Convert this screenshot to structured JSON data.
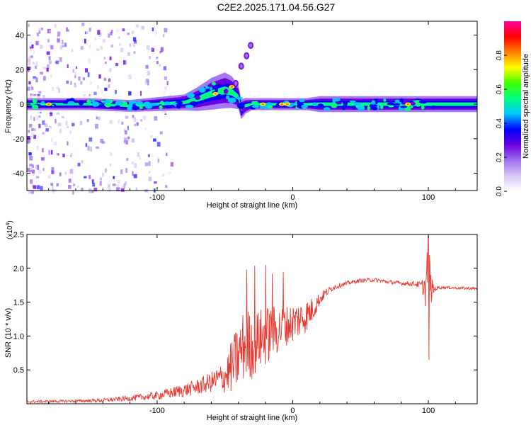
{
  "title": "C2E2.2025.171.04.56.G27",
  "colors": {
    "snr_line": "#e53a32",
    "axis": "#000000",
    "colormap": [
      "#ffffff",
      "#d9c8f6",
      "#a070f0",
      "#6a00e0",
      "#0000ff",
      "#00c8ff",
      "#00ff80",
      "#40ff00",
      "#ffff00",
      "#ff8000",
      "#ff0000",
      "#ff00a0"
    ]
  },
  "chart_data": [
    {
      "type": "heatmap",
      "panel": "spectrogram",
      "xlabel": "Height of straight line (km)",
      "ylabel": "Frequency (Hz)",
      "xlim": [
        -196,
        136
      ],
      "ylim": [
        -50,
        48
      ],
      "x_ticks": [
        -100,
        0,
        100
      ],
      "x_tick_labels": [
        "-100",
        "0",
        "100"
      ],
      "y_ticks": [
        40,
        20,
        0,
        -20,
        -40
      ],
      "y_tick_labels": [
        "40",
        "20",
        "0",
        "-20",
        "-40"
      ],
      "colorbar": {
        "label": "Normalized spectral amplitude",
        "range": [
          0,
          1
        ],
        "ticks": [
          0.0,
          0.2,
          0.4,
          0.6,
          0.8
        ],
        "tick_labels": [
          "0.0",
          "0.2",
          "0.4",
          "0.6",
          "0.8"
        ]
      },
      "trace": {
        "x": [
          -196,
          -150,
          -120,
          -80,
          -70,
          -60,
          -50,
          -45,
          -40,
          -38,
          -35,
          -30,
          -20,
          -10,
          0,
          10,
          20,
          40,
          60,
          80,
          85,
          95,
          100,
          136
        ],
        "center_hz": [
          0,
          0,
          -1,
          1,
          3,
          6,
          8,
          7,
          4,
          -3,
          -1,
          0,
          0,
          0,
          0,
          0,
          0,
          0,
          0,
          0,
          0,
          0,
          0,
          0
        ],
        "width_hz": [
          3,
          3,
          3,
          4,
          6,
          8,
          9,
          8,
          6,
          5,
          4,
          3,
          3,
          3,
          3,
          3,
          4,
          4,
          4,
          4,
          4,
          4,
          4,
          4
        ]
      },
      "strong_spots": [
        {
          "x": -180,
          "hz": 0
        },
        {
          "x": -57,
          "hz": 6
        },
        {
          "x": -45,
          "hz": 10
        },
        {
          "x": -22,
          "hz": 0
        },
        {
          "x": -8,
          "hz": 0
        },
        {
          "x": -4,
          "hz": 0
        },
        {
          "x": 85,
          "hz": 0
        }
      ],
      "side_branch": {
        "x": [
          -42,
          -38,
          -34,
          -31
        ],
        "hz": [
          12,
          22,
          28,
          34
        ]
      }
    },
    {
      "type": "line",
      "panel": "snr",
      "xlabel": "Height of straight line (km)",
      "ylabel": "SNR (10 * v/v)",
      "y_multiplier_label": "(x10",
      "y_multiplier_exp": "4",
      "xlim": [
        -196,
        136
      ],
      "ylim": [
        0,
        2.5
      ],
      "x_ticks": [
        -100,
        0,
        100
      ],
      "x_tick_labels": [
        "-100",
        "0",
        "100"
      ],
      "y_ticks": [
        0.5,
        1.0,
        1.5,
        2.0,
        2.5
      ],
      "y_tick_labels": [
        "0.5",
        "1.0",
        "1.5",
        "2.0",
        "2.5"
      ],
      "series": [
        {
          "x": [
            -196,
            -160,
            -140,
            -120,
            -100,
            -90,
            -80,
            -70,
            -60,
            -50,
            -45,
            -40,
            -35,
            -30,
            -25,
            -20,
            -15,
            -10,
            -5,
            0,
            5,
            10,
            15,
            20,
            25,
            30,
            40,
            50,
            60,
            70,
            80,
            90,
            95,
            98,
            100,
            102,
            105,
            110,
            120,
            136
          ],
          "y": [
            0.03,
            0.04,
            0.05,
            0.08,
            0.12,
            0.16,
            0.2,
            0.25,
            0.32,
            0.4,
            0.55,
            0.7,
            0.9,
            0.85,
            0.95,
            1.0,
            1.05,
            1.1,
            1.15,
            1.2,
            1.25,
            1.3,
            1.4,
            1.55,
            1.65,
            1.72,
            1.78,
            1.82,
            1.83,
            1.8,
            1.78,
            1.77,
            1.75,
            1.7,
            2.2,
            1.68,
            1.7,
            1.72,
            1.71,
            1.7
          ],
          "noise_amp": [
            0.02,
            0.02,
            0.03,
            0.04,
            0.06,
            0.08,
            0.1,
            0.12,
            0.15,
            0.25,
            0.4,
            0.5,
            0.55,
            0.5,
            0.45,
            0.45,
            0.4,
            0.35,
            0.3,
            0.3,
            0.28,
            0.25,
            0.18,
            0.1,
            0.06,
            0.04,
            0.03,
            0.03,
            0.03,
            0.03,
            0.03,
            0.04,
            0.06,
            0.3,
            0.4,
            0.2,
            0.04,
            0.02,
            0.02,
            0.02
          ]
        }
      ],
      "spikes": [
        {
          "x": -34,
          "y": 1.98
        },
        {
          "x": -28,
          "y": 2.04
        },
        {
          "x": -20,
          "y": 2.05
        },
        {
          "x": -15,
          "y": 1.92
        },
        {
          "x": -7,
          "y": 1.95
        },
        {
          "x": 100,
          "y": 2.5
        },
        {
          "x": 100.5,
          "y": 0.65
        }
      ]
    }
  ]
}
